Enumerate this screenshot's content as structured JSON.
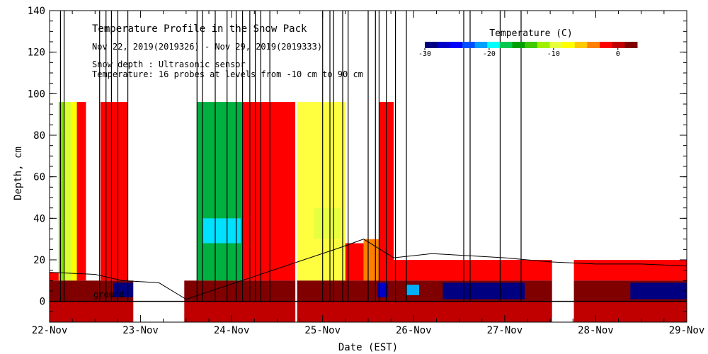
{
  "chart_data": {
    "type": "heatmap",
    "title": "Temperature Profile in the Snow Pack",
    "subtitle": "Nov 22, 2019(2019326) - Nov 29, 2019(2019333)",
    "notes": [
      "Snow depth : Ultrasonic sensor",
      "Temperature: 16 probes at levels from -10 cm to 90 cm"
    ],
    "ground_label": "ground",
    "xlabel": "Date (EST)",
    "ylabel": "Depth, cm",
    "x_ticks": [
      "22-Nov",
      "23-Nov",
      "24-Nov",
      "25-Nov",
      "26-Nov",
      "27-Nov",
      "28-Nov",
      "29-Nov"
    ],
    "x_range_days": [
      0,
      7
    ],
    "ylim": [
      -10,
      140
    ],
    "y_ticks": [
      0,
      20,
      40,
      60,
      80,
      100,
      120,
      140
    ],
    "colorbar": {
      "label": "Temperature (C)",
      "range": [
        -30,
        3
      ],
      "ticks": [
        -30,
        -20,
        -10,
        0
      ],
      "colors": [
        "#000080",
        "#0000c8",
        "#0000ff",
        "#0050ff",
        "#00a0ff",
        "#00ffff",
        "#00c850",
        "#00a000",
        "#40c800",
        "#a0f000",
        "#e8ff40",
        "#ffff00",
        "#ffc800",
        "#ff8000",
        "#ff0000",
        "#c00000",
        "#800000"
      ]
    },
    "temperature_blocks": [
      {
        "t0": 0.0,
        "t1": 0.1,
        "z0": 10,
        "z1": 14,
        "color": "#ff0000"
      },
      {
        "t0": 0.1,
        "t1": 0.16,
        "z0": 10,
        "z1": 96,
        "color": "#80e000"
      },
      {
        "t0": 0.16,
        "t1": 0.24,
        "z0": 10,
        "z1": 96,
        "color": "#d8ff30"
      },
      {
        "t0": 0.24,
        "t1": 0.3,
        "z0": 10,
        "z1": 96,
        "color": "#ffff00"
      },
      {
        "t0": 0.3,
        "t1": 0.4,
        "z0": 10,
        "z1": 96,
        "color": "#ff0000"
      },
      {
        "t0": 0.56,
        "t1": 0.86,
        "z0": 10,
        "z1": 96,
        "color": "#ff0000"
      },
      {
        "t0": 1.62,
        "t1": 2.12,
        "z0": 10,
        "z1": 96,
        "color": "#00b040"
      },
      {
        "t0": 2.12,
        "t1": 2.7,
        "z0": 10,
        "z1": 96,
        "color": "#ff0000"
      },
      {
        "t0": 2.7,
        "t1": 3.25,
        "z0": 10,
        "z1": 96,
        "color": "#ffff40"
      },
      {
        "t0": 3.25,
        "t1": 3.45,
        "z0": 10,
        "z1": 28,
        "color": "#ff0000"
      },
      {
        "t0": 3.45,
        "t1": 3.62,
        "z0": 10,
        "z1": 30,
        "color": "#ff8000"
      },
      {
        "t0": 3.62,
        "t1": 3.78,
        "z0": 10,
        "z1": 96,
        "color": "#ff0000"
      },
      {
        "t0": 3.78,
        "t1": 7.0,
        "z0": 10,
        "z1": 20,
        "color": "#ff0000"
      },
      {
        "t0": 0.0,
        "t1": 7.0,
        "z0": 0,
        "z1": 10,
        "color": "#800000"
      },
      {
        "t0": 0.0,
        "t1": 7.0,
        "z0": -10,
        "z1": 0,
        "color": "#c00000"
      },
      {
        "t0": 0.7,
        "t1": 0.92,
        "z0": 2,
        "z1": 9,
        "color": "#000080"
      },
      {
        "t0": 3.6,
        "t1": 3.72,
        "z0": 2,
        "z1": 9,
        "color": "#0000c8"
      },
      {
        "t0": 3.92,
        "t1": 4.06,
        "z0": 3,
        "z1": 8,
        "color": "#00b0ff"
      },
      {
        "t0": 4.32,
        "t1": 5.22,
        "z0": 1,
        "z1": 9,
        "color": "#000080"
      },
      {
        "t0": 6.38,
        "t1": 7.0,
        "z0": 1,
        "z1": 9,
        "color": "#000080"
      },
      {
        "t0": 1.68,
        "t1": 2.1,
        "z0": 28,
        "z1": 40,
        "color": "#00e0ff"
      },
      {
        "t0": 2.9,
        "t1": 3.2,
        "z0": 30,
        "z1": 45,
        "color": "#e8ff40"
      }
    ],
    "snow_depth": [
      {
        "t": 0.0,
        "depth": 14
      },
      {
        "t": 0.5,
        "depth": 13
      },
      {
        "t": 0.8,
        "depth": 10
      },
      {
        "t": 1.2,
        "depth": 9
      },
      {
        "t": 1.5,
        "depth": 1
      },
      {
        "t": 3.2,
        "depth": 26
      },
      {
        "t": 3.45,
        "depth": 30
      },
      {
        "t": 3.78,
        "depth": 21
      },
      {
        "t": 4.2,
        "depth": 23
      },
      {
        "t": 4.6,
        "depth": 22
      },
      {
        "t": 5.0,
        "depth": 21
      },
      {
        "t": 5.5,
        "depth": 19
      },
      {
        "t": 6.0,
        "depth": 18
      },
      {
        "t": 6.5,
        "depth": 18
      },
      {
        "t": 7.0,
        "depth": 17
      }
    ],
    "spikes": [
      0.12,
      0.16,
      0.55,
      0.62,
      0.68,
      0.75,
      0.86,
      1.62,
      1.68,
      1.82,
      1.95,
      2.05,
      2.12,
      2.2,
      2.26,
      2.32,
      2.42,
      3.0,
      3.08,
      3.12,
      3.22,
      3.28,
      3.5,
      3.58,
      3.62,
      3.7,
      3.8,
      3.92,
      4.55,
      4.62,
      4.95,
      5.18
    ],
    "data_gaps": [
      [
        0.92,
        1.48
      ],
      [
        2.7,
        2.72
      ],
      [
        5.52,
        5.76
      ]
    ]
  }
}
